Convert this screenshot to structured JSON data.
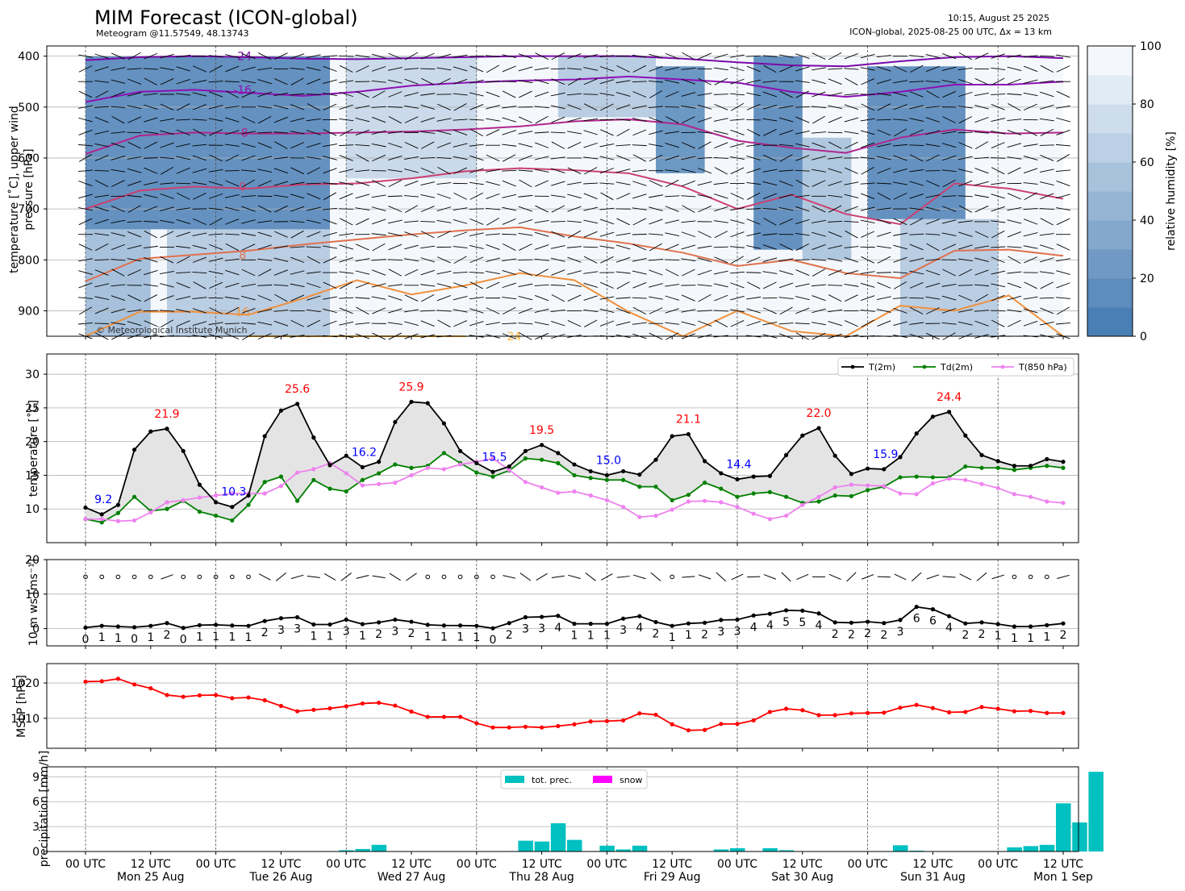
{
  "header": {
    "title": "MIM Forecast (ICON-global)",
    "subtitle": "Meteogram @11.57549, 48.13743",
    "timestamp": "10:15, August 25 2025",
    "run_info": "ICON-global, 2025-08-25 00 UTC, Δx = 13 km",
    "copyright": "© Meteorological Institute Munich"
  },
  "x_axis": {
    "ticks": [
      "00 UTC",
      "12 UTC",
      "00 UTC",
      "12 UTC",
      "00 UTC",
      "12 UTC",
      "00 UTC",
      "12 UTC",
      "00 UTC",
      "12 UTC",
      "00 UTC",
      "12 UTC",
      "00 UTC",
      "12 UTC",
      "00 UTC",
      "12 UTC"
    ],
    "days": [
      "Mon 25 Aug",
      "Tue 26 Aug",
      "Wed 27 Aug",
      "Thu 28 Aug",
      "Fri 29 Aug",
      "Sat 30 Aug",
      "Sun 31 Aug",
      "Mon 1 Sep"
    ]
  },
  "colors": {
    "t2m": "#000000",
    "td2m": "#008000",
    "t850": "#ee82ee",
    "mslp": "#ff0000",
    "precip": "#00c0c0",
    "snow": "#ff00ff",
    "max_label": "#ff0000",
    "min_label": "#0000ff",
    "fill": "#e4e4e4",
    "rh_dark": "#4a7fb5",
    "rh_light": "#f4f8fc"
  },
  "chart_data": [
    {
      "type": "heatmap",
      "ylabel": "temperature [$^\\circ$C], upper wind pressure [hPa]",
      "y_ticks": [
        "400",
        "500",
        "600",
        "700",
        "800",
        "900"
      ],
      "ylim": [
        950,
        380
      ],
      "colorbar": {
        "label": "relative humidity [%]",
        "ticks": [
          "0",
          "20",
          "40",
          "60",
          "80",
          "100"
        ],
        "range": [
          0,
          100
        ]
      },
      "isotherms": [
        {
          "label": "-24",
          "level_hPa": [
            408,
            402,
            398,
            402,
            405,
            406,
            404,
            402,
            400,
            398,
            400,
            405,
            412,
            418,
            420,
            410,
            402,
            400,
            404
          ]
        },
        {
          "label": "-16",
          "level_hPa": [
            490,
            470,
            466,
            472,
            478,
            470,
            458,
            452,
            448,
            446,
            440,
            446,
            452,
            470,
            480,
            470,
            456,
            456,
            450
          ]
        },
        {
          "label": "-8",
          "level_hPa": [
            592,
            556,
            550,
            552,
            552,
            550,
            548,
            544,
            538,
            528,
            524,
            534,
            566,
            580,
            590,
            560,
            544,
            552,
            550
          ]
        },
        {
          "label": "0",
          "level_hPa": [
            700,
            664,
            656,
            660,
            652,
            650,
            640,
            626,
            620,
            624,
            630,
            656,
            700,
            672,
            710,
            730,
            650,
            660,
            680
          ]
        },
        {
          "label": "8",
          "level_hPa": [
            842,
            798,
            790,
            782,
            770,
            760,
            750,
            742,
            736,
            754,
            768,
            786,
            812,
            800,
            826,
            836,
            782,
            780,
            792
          ]
        },
        {
          "label": "16",
          "level_hPa": [
            950,
            902,
            902,
            908,
            876,
            840,
            868,
            850,
            826,
            840,
            902,
            960,
            900,
            940,
            960,
            890,
            900,
            870,
            950
          ]
        },
        {
          "label": "24",
          "level_hPa": [
            null,
            null,
            null,
            958,
            null,
            null,
            950,
            955,
            null,
            null,
            null,
            null,
            null,
            null,
            null,
            null,
            null,
            null,
            null
          ]
        }
      ]
    },
    {
      "type": "line",
      "ylabel": "temperature [$^\\circ$C]",
      "ylim": [
        5,
        33
      ],
      "y_ticks": [
        10,
        15,
        20,
        25,
        30
      ],
      "series": [
        {
          "name": "T(2m)",
          "values": [
            10.2,
            9.2,
            10.6,
            18.8,
            21.5,
            21.9,
            18.6,
            13.6,
            11.0,
            10.3,
            12.0,
            20.8,
            24.6,
            25.6,
            20.6,
            16.5,
            17.9,
            16.2,
            17.0,
            22.9,
            25.9,
            25.7,
            22.7,
            18.6,
            16.8,
            15.5,
            16.3,
            18.6,
            19.5,
            18.3,
            16.6,
            15.6,
            15.0,
            15.6,
            15.1,
            17.3,
            20.8,
            21.1,
            17.1,
            15.3,
            14.4,
            14.8,
            14.9,
            18.0,
            20.9,
            22.0,
            17.9,
            15.2,
            16.0,
            15.9,
            17.7,
            21.2,
            23.7,
            24.4,
            20.9,
            18.0,
            17.1,
            16.4,
            16.4,
            17.4,
            17.0
          ]
        },
        {
          "name": "Td(2m)",
          "values": [
            8.5,
            8.0,
            9.4,
            11.8,
            9.7,
            10.0,
            11.2,
            9.6,
            9.0,
            8.3,
            10.6,
            14.0,
            14.8,
            11.2,
            14.3,
            13.0,
            12.6,
            14.3,
            15.3,
            16.6,
            16.1,
            16.4,
            18.3,
            16.8,
            15.4,
            14.8,
            15.7,
            17.5,
            17.3,
            16.8,
            15.0,
            14.6,
            14.3,
            14.3,
            13.3,
            13.3,
            11.3,
            12.1,
            13.9,
            13.0,
            11.8,
            12.3,
            12.5,
            11.8,
            10.9,
            11.1,
            12.0,
            11.9,
            12.8,
            13.3,
            14.7,
            14.8,
            14.7,
            14.7,
            16.3,
            16.1,
            16.1,
            15.8,
            16.1,
            16.4,
            16.1
          ]
        },
        {
          "name": "T(850 hPa)",
          "values": [
            8.5,
            8.5,
            8.2,
            8.3,
            9.5,
            11.0,
            11.3,
            11.7,
            12.0,
            12.3,
            12.3,
            12.3,
            13.4,
            15.4,
            15.9,
            16.8,
            15.3,
            13.5,
            13.7,
            13.9,
            15.0,
            16.1,
            15.9,
            16.6,
            17.0,
            17.5,
            15.8,
            14.0,
            13.2,
            12.4,
            12.6,
            12.0,
            11.3,
            10.3,
            8.8,
            9.0,
            9.9,
            11.1,
            11.2,
            11.0,
            10.3,
            9.3,
            8.5,
            9.0,
            10.6,
            11.8,
            13.2,
            13.6,
            13.5,
            13.4,
            12.3,
            12.2,
            13.8,
            14.5,
            14.3,
            13.7,
            13.1,
            12.2,
            11.8,
            11.1,
            10.9
          ]
        }
      ],
      "extrema_labels": [
        {
          "i": 1,
          "text": "9.2",
          "kind": "min"
        },
        {
          "i": 5,
          "text": "21.9",
          "kind": "max"
        },
        {
          "i": 9,
          "text": "10.3",
          "kind": "min"
        },
        {
          "i": 13,
          "text": "25.6",
          "kind": "max"
        },
        {
          "i": 17,
          "text": "16.2",
          "kind": "min"
        },
        {
          "i": 20,
          "text": "25.9",
          "kind": "max"
        },
        {
          "i": 25,
          "text": "15.5",
          "kind": "min"
        },
        {
          "i": 28,
          "text": "19.5",
          "kind": "max"
        },
        {
          "i": 32,
          "text": "15.0",
          "kind": "min"
        },
        {
          "i": 37,
          "text": "21.1",
          "kind": "max"
        },
        {
          "i": 40,
          "text": "14.4",
          "kind": "min"
        },
        {
          "i": 45,
          "text": "22.0",
          "kind": "max"
        },
        {
          "i": 49,
          "text": "15.9",
          "kind": "min"
        },
        {
          "i": 53,
          "text": "24.4",
          "kind": "max"
        }
      ],
      "legend": "top-right"
    },
    {
      "type": "line",
      "ylabel": "10 m ws [ms$^{-1}$]",
      "ylim": [
        -5,
        20
      ],
      "y_ticks": [
        0,
        10,
        20
      ],
      "series": [
        {
          "name": "",
          "values": [
            0.3,
            0.8,
            0.6,
            0.4,
            0.8,
            1.6,
            0.2,
            1.0,
            1.1,
            0.9,
            0.8,
            2.2,
            3.0,
            3.3,
            1.2,
            1.2,
            2.6,
            1.3,
            1.8,
            2.6,
            2.0,
            1.1,
            0.9,
            0.9,
            0.8,
            0.1,
            1.6,
            3.3,
            3.4,
            3.7,
            1.4,
            1.4,
            1.4,
            2.9,
            3.6,
            1.9,
            0.8,
            1.5,
            1.7,
            2.5,
            2.6,
            3.8,
            4.3,
            5.3,
            5.2,
            4.4,
            1.8,
            1.7,
            2.0,
            1.6,
            2.5,
            6.3,
            5.6,
            3.6,
            1.5,
            1.8,
            1.3,
            0.6,
            0.6,
            1.0,
            1.5
          ]
        }
      ],
      "value_labels": [
        "0",
        "1",
        "1",
        "0",
        "1",
        "2",
        "0",
        "1",
        "1",
        "1",
        "1",
        "2",
        "3",
        "3",
        "1",
        "1",
        "3",
        "1",
        "2",
        "3",
        "2",
        "1",
        "1",
        "1",
        "1",
        "0",
        "2",
        "3",
        "3",
        "4",
        "1",
        "1",
        "1",
        "3",
        "4",
        "2",
        "1",
        "1",
        "2",
        "3",
        "3",
        "4",
        "4",
        "5",
        "5",
        "4",
        "2",
        "2",
        "2",
        "2",
        "3",
        "6",
        "6",
        "4",
        "2",
        "2",
        "1",
        "1",
        "1",
        "1",
        "2"
      ]
    },
    {
      "type": "line",
      "ylabel": "MSLP [hPa]",
      "ylim": [
        1001.5,
        1025.5
      ],
      "y_ticks": [
        1010,
        1020
      ],
      "series": [
        {
          "name": "",
          "values": [
            1020.4,
            1020.5,
            1021.2,
            1019.6,
            1018.5,
            1016.6,
            1016.1,
            1016.5,
            1016.6,
            1015.7,
            1015.9,
            1015.1,
            1013.5,
            1012.0,
            1012.4,
            1012.8,
            1013.4,
            1014.2,
            1014.4,
            1013.6,
            1011.9,
            1010.4,
            1010.4,
            1010.4,
            1008.6,
            1007.4,
            1007.4,
            1007.6,
            1007.4,
            1007.8,
            1008.3,
            1009.1,
            1009.2,
            1009.4,
            1011.4,
            1011.0,
            1008.3,
            1006.6,
            1006.7,
            1008.4,
            1008.4,
            1009.4,
            1011.8,
            1012.7,
            1012.3,
            1010.9,
            1010.9,
            1011.4,
            1011.5,
            1011.6,
            1013.0,
            1013.8,
            1012.9,
            1011.7,
            1011.8,
            1013.2,
            1012.7,
            1012.0,
            1012.1,
            1011.5,
            1011.5
          ]
        }
      ]
    },
    {
      "type": "bar",
      "ylabel": "precipitation [mm/h]",
      "ylim": [
        0,
        10.2
      ],
      "y_ticks": [
        0,
        3,
        6,
        9
      ],
      "series": [
        {
          "name": "tot. prec.",
          "values": [
            0,
            0,
            0,
            0,
            0,
            0,
            0,
            0,
            0,
            0,
            0,
            0,
            0,
            0,
            0,
            0.05,
            0.15,
            0.3,
            0.8,
            0,
            0,
            0,
            0,
            0,
            0,
            0,
            0.05,
            1.3,
            1.2,
            3.4,
            1.4,
            0.05,
            0.7,
            0.25,
            0.7,
            0,
            0,
            0,
            0,
            0.25,
            0.4,
            0,
            0.4,
            0.15,
            0,
            0,
            0,
            0,
            0,
            0,
            0.75,
            0.1,
            0,
            0,
            0,
            0,
            0,
            0.5,
            0.65,
            0.8,
            5.8,
            3.5,
            9.6
          ]
        },
        {
          "name": "snow",
          "values": []
        }
      ],
      "legend": "top-center"
    }
  ]
}
